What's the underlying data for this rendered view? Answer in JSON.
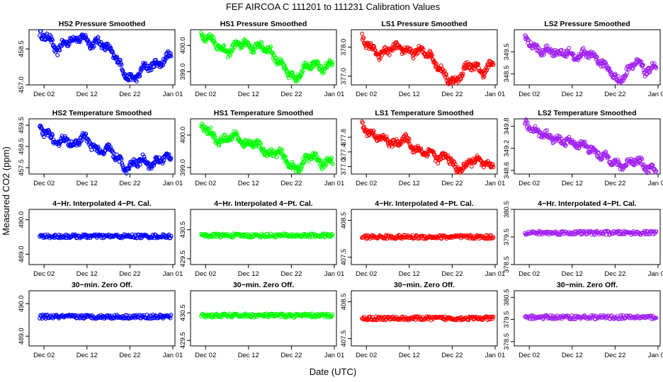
{
  "figure": {
    "title": "FEF   AIRCOA C   111201 to 111231   Calibration Values",
    "xlabel": "Date (UTC)",
    "ylabel": "Measured CO2 (ppm)"
  },
  "colors": {
    "HS2": "#0000ff",
    "HS1": "#00ff00",
    "LS1": "#ff0000",
    "LS2": "#a020f0"
  },
  "x_ticks": [
    "Dec 02",
    "Dec 12",
    "Dec 22",
    "Jan 01"
  ],
  "chart_data": [
    {
      "type": "scatter",
      "title": "HS2 Pressure Smoothed",
      "series": "HS2",
      "ylim": [
        457.0,
        459.3
      ],
      "yticks": [
        "457.0",
        "458.5"
      ],
      "ytick_values": [
        457.0,
        458.5
      ],
      "x": [
        1,
        3,
        5,
        7,
        9,
        11,
        13,
        15,
        17,
        19,
        21,
        23,
        25,
        27,
        29,
        31
      ],
      "values": [
        459.1,
        459.0,
        458.4,
        458.8,
        458.9,
        459.0,
        458.7,
        458.8,
        458.5,
        458.1,
        457.4,
        457.2,
        457.7,
        457.8,
        457.9,
        458.2
      ]
    },
    {
      "type": "scatter",
      "title": "HS1 Pressure Smoothed",
      "series": "HS1",
      "ylim": [
        398.5,
        400.6
      ],
      "yticks": [
        "399.0",
        "400.0"
      ],
      "ytick_values": [
        399.0,
        400.0
      ],
      "x": [
        1,
        3,
        5,
        7,
        9,
        11,
        13,
        15,
        17,
        19,
        21,
        23,
        25,
        27,
        29,
        31
      ],
      "values": [
        400.4,
        400.3,
        400.0,
        399.7,
        400.0,
        400.1,
        399.9,
        400.0,
        399.8,
        399.4,
        399.0,
        398.7,
        399.2,
        399.3,
        399.1,
        399.3
      ]
    },
    {
      "type": "scatter",
      "title": "LS1 Pressure Smoothed",
      "series": "LS1",
      "ylim": [
        376.7,
        378.6
      ],
      "yticks": [
        "377.0",
        "378.0"
      ],
      "ytick_values": [
        377.0,
        378.0
      ],
      "x": [
        1,
        3,
        5,
        7,
        9,
        11,
        13,
        15,
        17,
        19,
        21,
        23,
        25,
        27,
        29,
        31
      ],
      "values": [
        378.3,
        378.0,
        377.7,
        377.9,
        378.0,
        377.9,
        377.8,
        377.9,
        377.7,
        377.3,
        376.9,
        376.8,
        377.3,
        377.4,
        377.1,
        377.4
      ]
    },
    {
      "type": "scatter",
      "title": "LS2 Pressure Smoothed",
      "series": "LS2",
      "ylim": [
        348.0,
        350.5
      ],
      "yticks": [
        "348.5",
        "349.5"
      ],
      "ytick_values": [
        348.5,
        349.5
      ],
      "x": [
        1,
        3,
        5,
        7,
        9,
        11,
        13,
        15,
        17,
        19,
        21,
        23,
        25,
        27,
        29,
        31
      ],
      "values": [
        350.2,
        349.7,
        349.5,
        349.6,
        349.4,
        349.5,
        349.2,
        349.5,
        349.3,
        349.0,
        348.6,
        348.1,
        348.7,
        349.1,
        348.6,
        348.8
      ]
    },
    {
      "type": "scatter",
      "title": "HS2 Temperature Smoothed",
      "series": "HS2",
      "ylim": [
        457.2,
        459.8
      ],
      "yticks": [
        "457.5",
        "458.5",
        "459.5"
      ],
      "ytick_values": [
        457.5,
        458.5,
        459.5
      ],
      "x": [
        1,
        3,
        5,
        7,
        9,
        11,
        13,
        15,
        17,
        19,
        21,
        23,
        25,
        27,
        29,
        31
      ],
      "values": [
        459.3,
        459.1,
        458.6,
        458.9,
        458.5,
        459.0,
        458.6,
        458.2,
        458.4,
        458.0,
        457.4,
        457.7,
        457.9,
        457.6,
        457.9,
        458.0
      ]
    },
    {
      "type": "scatter",
      "title": "HS1 Temperature Smoothed",
      "series": "HS1",
      "ylim": [
        398.8,
        400.5
      ],
      "yticks": [
        "399.0",
        "400.0"
      ],
      "ytick_values": [
        399.0,
        400.0
      ],
      "x": [
        1,
        3,
        5,
        7,
        9,
        11,
        13,
        15,
        17,
        19,
        21,
        23,
        25,
        27,
        29,
        31
      ],
      "values": [
        400.3,
        400.1,
        399.8,
        399.9,
        400.0,
        399.7,
        399.8,
        399.6,
        399.4,
        399.5,
        399.2,
        398.9,
        399.2,
        399.4,
        399.1,
        399.2
      ]
    },
    {
      "type": "scatter",
      "title": "LS1 Temperature Smoothed",
      "series": "LS1",
      "ylim": [
        376.8,
        378.3
      ],
      "yticks": [
        "377.0",
        "377.4",
        "377.8"
      ],
      "ytick_values": [
        377.0,
        377.4,
        377.8
      ],
      "x": [
        1,
        3,
        5,
        7,
        9,
        11,
        13,
        15,
        17,
        19,
        21,
        23,
        25,
        27,
        29,
        31
      ],
      "values": [
        378.1,
        377.9,
        377.8,
        377.7,
        377.6,
        377.8,
        377.5,
        377.4,
        377.4,
        377.2,
        377.3,
        376.9,
        377.0,
        377.2,
        377.1,
        377.0
      ]
    },
    {
      "type": "scatter",
      "title": "LS2 Temperature Smoothed",
      "series": "LS2",
      "ylim": [
        348.5,
        350.0
      ],
      "yticks": [
        "348.6",
        "349.2",
        "349.8"
      ],
      "ytick_values": [
        348.6,
        349.2,
        349.8
      ],
      "x": [
        1,
        3,
        5,
        7,
        9,
        11,
        13,
        15,
        17,
        19,
        21,
        23,
        25,
        27,
        29,
        31
      ],
      "values": [
        349.9,
        349.7,
        349.6,
        349.5,
        349.4,
        349.4,
        349.3,
        349.3,
        349.1,
        349.0,
        348.9,
        348.7,
        348.8,
        348.9,
        348.7,
        348.6
      ]
    },
    {
      "type": "scatter",
      "title": "4−Hr. Interpolated 4−Pt. Cal.",
      "series": "HS2",
      "ylim": [
        488.7,
        490.3
      ],
      "yticks": [
        "489.0",
        "490.0"
      ],
      "ytick_values": [
        489.0,
        490.0
      ],
      "x": [
        1,
        31
      ],
      "values": [
        489.52,
        489.52
      ]
    },
    {
      "type": "scatter",
      "title": "4−Hr. Interpolated 4−Pt. Cal.",
      "series": "HS1",
      "ylim": [
        429.3,
        431.2
      ],
      "yticks": [
        "429.5",
        "430.5"
      ],
      "ytick_values": [
        429.5,
        430.5
      ],
      "x": [
        1,
        31
      ],
      "values": [
        430.3,
        430.3
      ]
    },
    {
      "type": "scatter",
      "title": "4−Hr. Interpolated 4−Pt. Cal.",
      "series": "LS1",
      "ylim": [
        407.3,
        408.8
      ],
      "yticks": [
        "407.5",
        "408.5"
      ],
      "ytick_values": [
        407.5,
        408.5
      ],
      "x": [
        1,
        31
      ],
      "values": [
        408.05,
        408.05
      ]
    },
    {
      "type": "scatter",
      "title": "4−Hr. Interpolated 4−Pt. Cal.",
      "series": "LS2",
      "ylim": [
        378.5,
        380.5
      ],
      "yticks": [
        "378.5",
        "379.5",
        "380.5"
      ],
      "ytick_values": [
        378.5,
        379.5,
        380.5
      ],
      "x": [
        1,
        31
      ],
      "values": [
        379.65,
        379.65
      ]
    },
    {
      "type": "scatter",
      "title": "30−min. Zero Off.",
      "series": "HS2",
      "ylim": [
        488.7,
        490.4
      ],
      "yticks": [
        "489.0",
        "490.0"
      ],
      "ytick_values": [
        489.0,
        490.0
      ],
      "x": [
        1,
        31
      ],
      "values": [
        489.6,
        489.6
      ]
    },
    {
      "type": "scatter",
      "title": "30−min. Zero Off.",
      "series": "HS1",
      "ylim": [
        429.3,
        431.3
      ],
      "yticks": [
        "429.5",
        "430.5"
      ],
      "ytick_values": [
        429.5,
        430.5
      ],
      "x": [
        1,
        31
      ],
      "values": [
        430.4,
        430.4
      ]
    },
    {
      "type": "scatter",
      "title": "30−min. Zero Off.",
      "series": "LS1",
      "ylim": [
        407.3,
        408.8
      ],
      "yticks": [
        "407.5",
        "408.5"
      ],
      "ytick_values": [
        407.5,
        408.5
      ],
      "x": [
        1,
        31
      ],
      "values": [
        408.05,
        408.05
      ]
    },
    {
      "type": "scatter",
      "title": "30−min. Zero Off.",
      "series": "LS2",
      "ylim": [
        378.3,
        380.8
      ],
      "yticks": [
        "378.5",
        "379.5",
        "380.5"
      ],
      "ytick_values": [
        378.5,
        379.5,
        380.5
      ],
      "x": [
        1,
        31
      ],
      "values": [
        379.6,
        379.6
      ]
    }
  ]
}
